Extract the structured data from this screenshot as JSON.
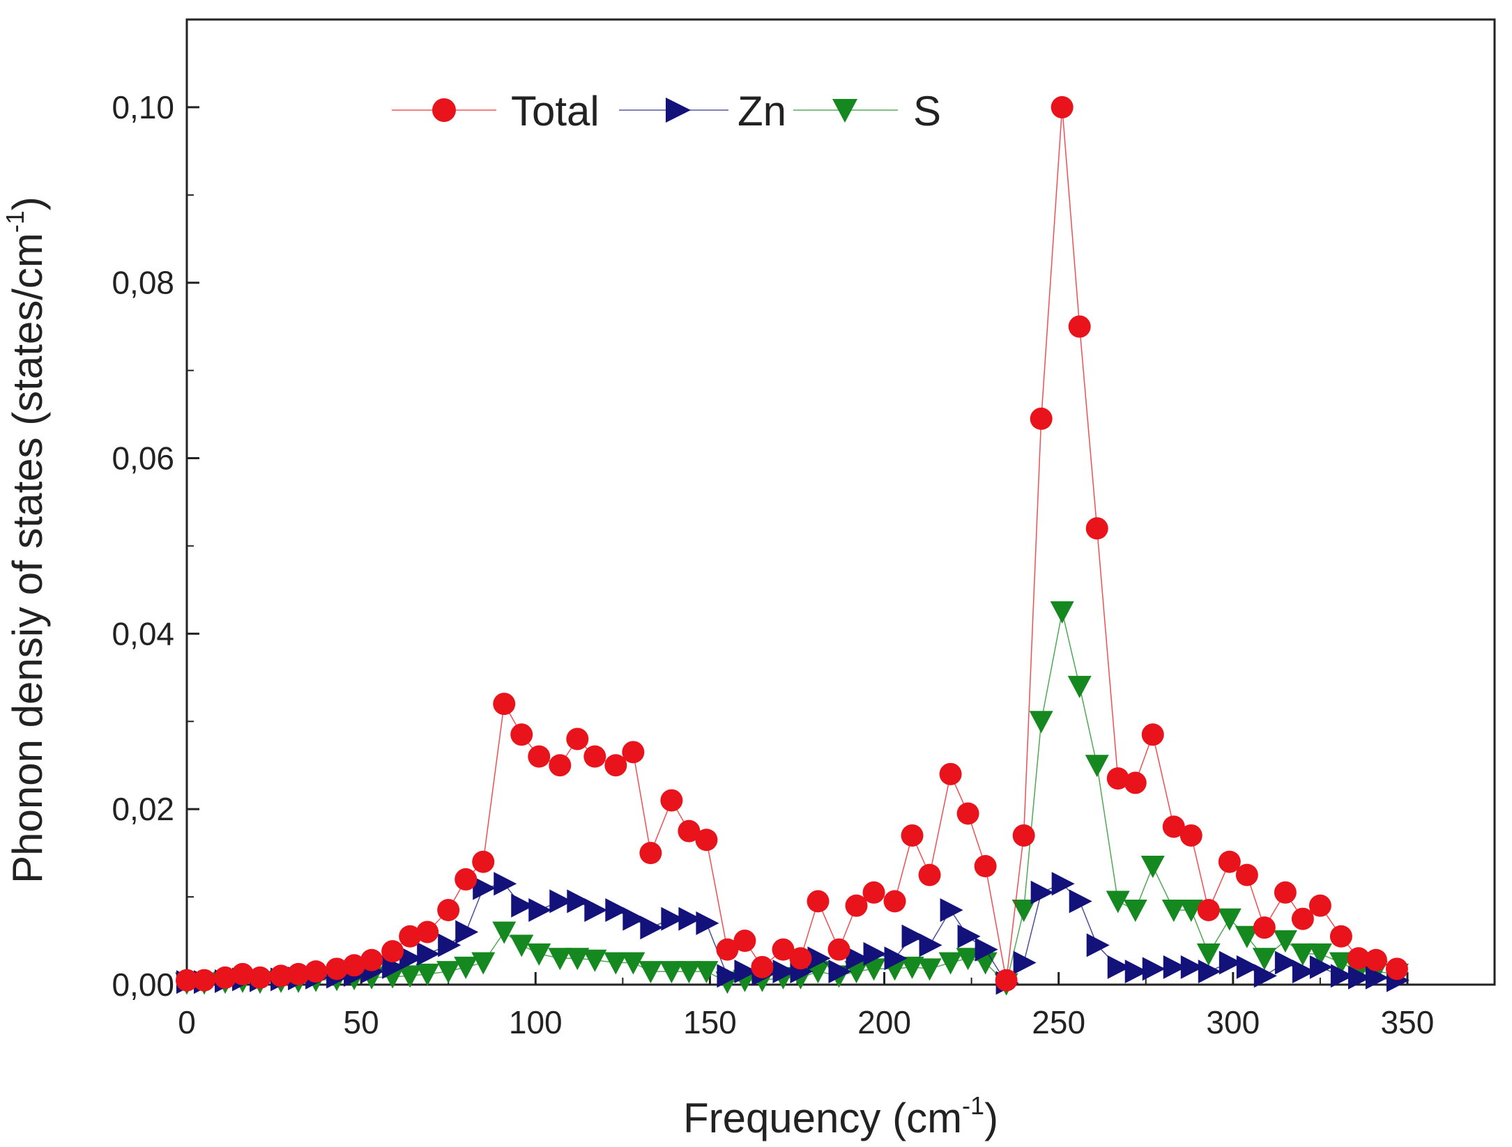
{
  "chart_data": {
    "type": "scatter",
    "title": "",
    "xlabel": "Frequency (cm",
    "xlabel_sup": "-1",
    "xlabel_suffix": ")",
    "ylabel": "Phonon densiy of states (states/cm",
    "ylabel_sup": "-1",
    "ylabel_suffix": ")",
    "xlim": [
      0,
      375
    ],
    "ylim": [
      0,
      0.11
    ],
    "x_ticks": [
      0,
      50,
      100,
      150,
      200,
      250,
      300,
      350
    ],
    "x_tick_labels": [
      "0",
      "50",
      "100",
      "150",
      "200",
      "250",
      "300",
      "350"
    ],
    "y_ticks": [
      0,
      0.02,
      0.04,
      0.06,
      0.08,
      0.1
    ],
    "y_tick_labels": [
      "0,00",
      "0,02",
      "0,04",
      "0,06",
      "0,08",
      "0,10"
    ],
    "legend_position": "top-left",
    "x": [
      0,
      5,
      11,
      16,
      21,
      27,
      32,
      37,
      43,
      48,
      53,
      59,
      64,
      69,
      75,
      80,
      85,
      91,
      96,
      101,
      107,
      112,
      117,
      123,
      128,
      133,
      139,
      144,
      149,
      155,
      160,
      165,
      171,
      176,
      181,
      187,
      192,
      197,
      203,
      208,
      213,
      219,
      224,
      229,
      235,
      240,
      245,
      251,
      256,
      261,
      267,
      272,
      277,
      283,
      288,
      293,
      299,
      304,
      309,
      315,
      320,
      325,
      331,
      336,
      341,
      347
    ],
    "series": [
      {
        "name": "Total",
        "color": "#e8131b",
        "marker": "circle",
        "values": [
          0.0005,
          0.0005,
          0.0008,
          0.0012,
          0.0008,
          0.001,
          0.0012,
          0.0015,
          0.0018,
          0.0022,
          0.0028,
          0.0038,
          0.0055,
          0.006,
          0.0085,
          0.012,
          0.014,
          0.032,
          0.0285,
          0.026,
          0.025,
          0.028,
          0.026,
          0.025,
          0.0265,
          0.015,
          0.021,
          0.0175,
          0.0165,
          0.004,
          0.005,
          0.002,
          0.004,
          0.003,
          0.0095,
          0.004,
          0.009,
          0.0105,
          0.0095,
          0.017,
          0.0125,
          0.024,
          0.0195,
          0.0135,
          0.0005,
          0.017,
          0.0645,
          0.1,
          0.075,
          0.052,
          0.0235,
          0.023,
          0.0285,
          0.018,
          0.017,
          0.0085,
          0.014,
          0.0125,
          0.0065,
          0.0105,
          0.0075,
          0.009,
          0.0055,
          0.003,
          0.0028,
          0.0018
        ]
      },
      {
        "name": "Zn",
        "color": "#12127a",
        "marker": "triangle-right",
        "values": [
          0.0003,
          0.0003,
          0.0004,
          0.0006,
          0.0005,
          0.0006,
          0.0007,
          0.0008,
          0.0009,
          0.0011,
          0.0015,
          0.002,
          0.003,
          0.0035,
          0.0045,
          0.006,
          0.011,
          0.0115,
          0.009,
          0.0085,
          0.0095,
          0.0095,
          0.0085,
          0.0085,
          0.0075,
          0.0065,
          0.0075,
          0.0075,
          0.007,
          0.001,
          0.0015,
          0.0012,
          0.0015,
          0.0015,
          0.003,
          0.0015,
          0.003,
          0.0035,
          0.003,
          0.0055,
          0.0045,
          0.0085,
          0.0055,
          0.004,
          0.0002,
          0.0025,
          0.0105,
          0.0115,
          0.0095,
          0.0045,
          0.002,
          0.0015,
          0.0018,
          0.002,
          0.002,
          0.0015,
          0.0025,
          0.002,
          0.001,
          0.0025,
          0.0015,
          0.002,
          0.001,
          0.0008,
          0.0008,
          0.0005
        ]
      },
      {
        "name": "S",
        "color": "#15891f",
        "marker": "triangle-down",
        "values": [
          0.0002,
          0.0002,
          0.0003,
          0.0004,
          0.0003,
          0.0004,
          0.0004,
          0.0005,
          0.0006,
          0.0007,
          0.0008,
          0.0009,
          0.001,
          0.0012,
          0.0015,
          0.002,
          0.0025,
          0.006,
          0.0045,
          0.0035,
          0.003,
          0.003,
          0.0028,
          0.0025,
          0.0025,
          0.0015,
          0.0015,
          0.0015,
          0.0015,
          0.0003,
          0.0005,
          0.0005,
          0.0008,
          0.0008,
          0.0015,
          0.001,
          0.0015,
          0.0018,
          0.0018,
          0.002,
          0.0018,
          0.0025,
          0.003,
          0.0025,
          0.0001,
          0.0085,
          0.03,
          0.0425,
          0.034,
          0.025,
          0.0095,
          0.0085,
          0.0135,
          0.0085,
          0.0085,
          0.0035,
          0.0075,
          0.0055,
          0.003,
          0.005,
          0.0035,
          0.0035,
          0.0025,
          0.0015,
          0.0015,
          0.0012
        ]
      }
    ]
  }
}
